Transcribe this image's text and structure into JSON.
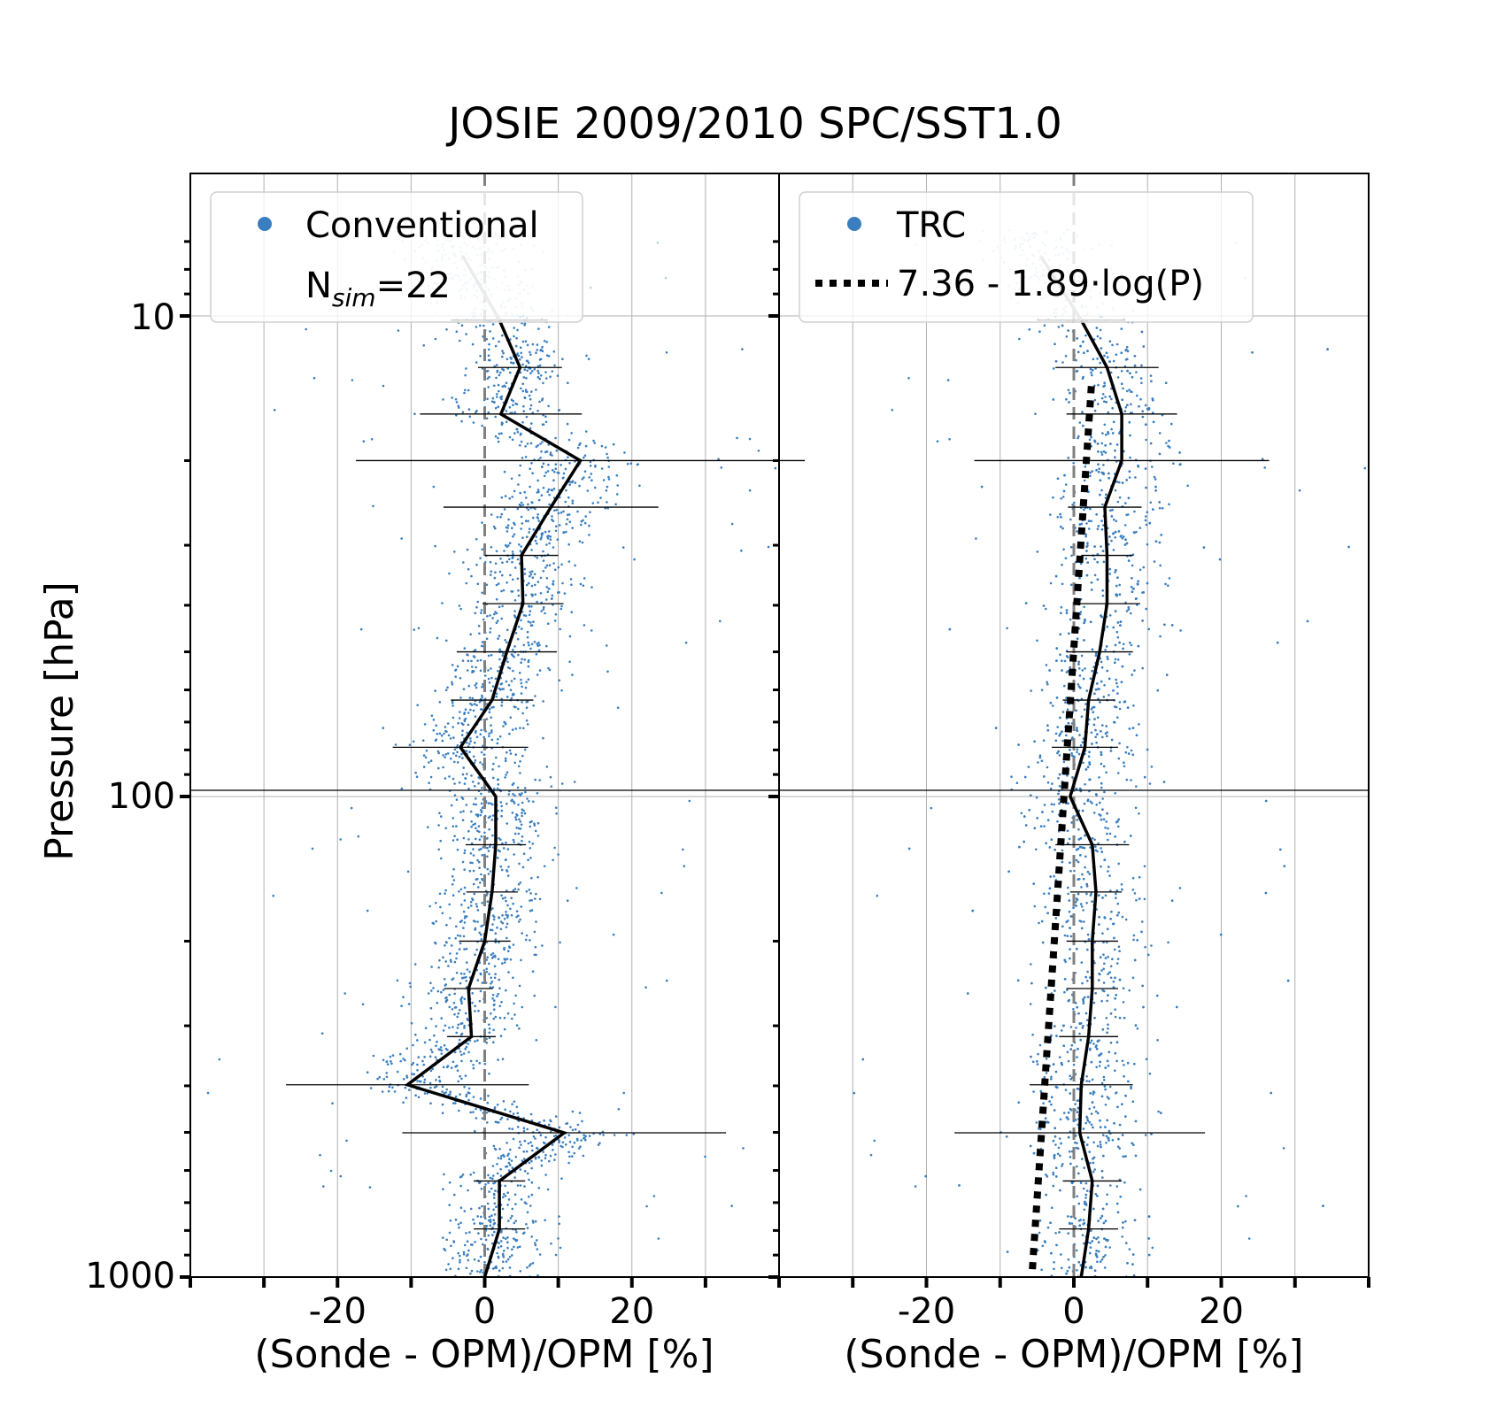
{
  "figure": {
    "title": "JOSIE 2009/2010 SPC/SST1.0",
    "ylabel": "Pressure [hPa]",
    "ytick_labels": [
      "10",
      "100",
      "1000"
    ],
    "colors": {
      "scatter": "#3a7ebf",
      "scatter_light": "#b9d3ea",
      "median_line": "#000000",
      "median_faded": "#9a9a9a",
      "zero_line": "#808080",
      "grid": "#b0b0b0"
    }
  },
  "chart_data": [
    {
      "type": "scatter",
      "panel": "left",
      "xlabel": "(Sonde - OPM)/OPM [%]",
      "ylabel": "Pressure [hPa]",
      "xlim": [
        -40,
        40
      ],
      "ylim": [
        1000,
        6
      ],
      "yscale": "log",
      "xticks": [
        -20,
        0,
        20
      ],
      "xtick_labels": [
        "-20",
        "0",
        "20"
      ],
      "grid": true,
      "legend": {
        "placement": "top-left",
        "entries": [
          {
            "label": "Conventional",
            "marker": "circle",
            "color": "#3a7ebf"
          },
          {
            "label_main": "N",
            "label_sub": "sim",
            "label_tail": "=22",
            "marker": "none"
          }
        ]
      },
      "series": [
        {
          "name": "Conventional",
          "kind": "median_profile",
          "points": [
            {
              "p": 7.5,
              "x": -3.0,
              "xerr": 0
            },
            {
              "p": 10.2,
              "x": 2.0,
              "xerr": 6.6
            },
            {
              "p": 12.8,
              "x": 4.8,
              "xerr": 5.7
            },
            {
              "p": 16.0,
              "x": 2.2,
              "xerr": 11.0
            },
            {
              "p": 20.0,
              "x": 13.0,
              "xerr": 30.5
            },
            {
              "p": 25.0,
              "x": 9.0,
              "xerr": 14.6
            },
            {
              "p": 31.5,
              "x": 5.0,
              "xerr": 5.0
            },
            {
              "p": 39.7,
              "x": 5.2,
              "xerr": 5.5
            },
            {
              "p": 50.0,
              "x": 3.0,
              "xerr": 6.8
            },
            {
              "p": 63.0,
              "x": 1.0,
              "xerr": 5.6
            },
            {
              "p": 79.0,
              "x": -3.3,
              "xerr": 9.2
            },
            {
              "p": 100.0,
              "x": 1.5,
              "xerr": 0
            },
            {
              "p": 126.0,
              "x": 1.5,
              "xerr": 4.1
            },
            {
              "p": 158.0,
              "x": 1.0,
              "xerr": 3.5
            },
            {
              "p": 200.0,
              "x": 0.0,
              "xerr": 3.5
            },
            {
              "p": 251.0,
              "x": -2.2,
              "xerr": 3.3
            },
            {
              "p": 316.0,
              "x": -1.8,
              "xerr": 3.3
            },
            {
              "p": 398.0,
              "x": -10.5,
              "xerr": 16.5
            },
            {
              "p": 501.0,
              "x": 10.8,
              "xerr": 22.0
            },
            {
              "p": 631.0,
              "x": 2.0,
              "xerr": 3.5
            },
            {
              "p": 794.0,
              "x": 2.0,
              "xerr": 3.5
            },
            {
              "p": 1000.0,
              "x": 0.0,
              "xerr": 3.0
            }
          ]
        }
      ]
    },
    {
      "type": "scatter",
      "panel": "right",
      "xlabel": "(Sonde - OPM)/OPM [%]",
      "xlim": [
        -40,
        40
      ],
      "ylim": [
        1000,
        6
      ],
      "yscale": "log",
      "xticks": [
        -20,
        0,
        20
      ],
      "xtick_labels": [
        "-20",
        "0",
        "20"
      ],
      "grid": true,
      "legend": {
        "placement": "top-left",
        "entries": [
          {
            "label": "TRC",
            "marker": "circle",
            "color": "#3a7ebf"
          },
          {
            "label": "7.36 - 1.89·log(P)",
            "marker": "dotted-line",
            "color": "#000000"
          }
        ]
      },
      "series": [
        {
          "name": "TRC",
          "kind": "median_profile",
          "points": [
            {
              "p": 7.5,
              "x": -4.5,
              "xerr": 0
            },
            {
              "p": 10.2,
              "x": 1.0,
              "xerr": 6.0
            },
            {
              "p": 12.8,
              "x": 4.5,
              "xerr": 7.0
            },
            {
              "p": 16.0,
              "x": 6.5,
              "xerr": 7.5
            },
            {
              "p": 20.0,
              "x": 6.5,
              "xerr": 20.0
            },
            {
              "p": 25.0,
              "x": 4.2,
              "xerr": 5.0
            },
            {
              "p": 31.5,
              "x": 4.5,
              "xerr": 3.5
            },
            {
              "p": 39.7,
              "x": 4.5,
              "xerr": 4.5
            },
            {
              "p": 50.0,
              "x": 3.5,
              "xerr": 4.5
            },
            {
              "p": 63.0,
              "x": 2.0,
              "xerr": 3.5
            },
            {
              "p": 79.0,
              "x": 1.5,
              "xerr": 4.5
            },
            {
              "p": 100.0,
              "x": -0.5,
              "xerr": 0
            },
            {
              "p": 126.0,
              "x": 2.5,
              "xerr": 5.0
            },
            {
              "p": 158.0,
              "x": 3.0,
              "xerr": 3.5
            },
            {
              "p": 200.0,
              "x": 2.5,
              "xerr": 3.5
            },
            {
              "p": 251.0,
              "x": 2.5,
              "xerr": 3.5
            },
            {
              "p": 316.0,
              "x": 2.0,
              "xerr": 4.0
            },
            {
              "p": 398.0,
              "x": 1.0,
              "xerr": 7.0
            },
            {
              "p": 501.0,
              "x": 0.8,
              "xerr": 17.0
            },
            {
              "p": 631.0,
              "x": 2.5,
              "xerr": 4.0
            },
            {
              "p": 794.0,
              "x": 2.0,
              "xerr": 4.0
            },
            {
              "p": 1000.0,
              "x": 1.0,
              "xerr": 3.0
            }
          ]
        },
        {
          "name": "7.36 - 1.89·log(P)",
          "kind": "fit",
          "intercept": 7.36,
          "slope": -1.89,
          "p_range": [
            14,
            1000
          ]
        }
      ]
    }
  ]
}
